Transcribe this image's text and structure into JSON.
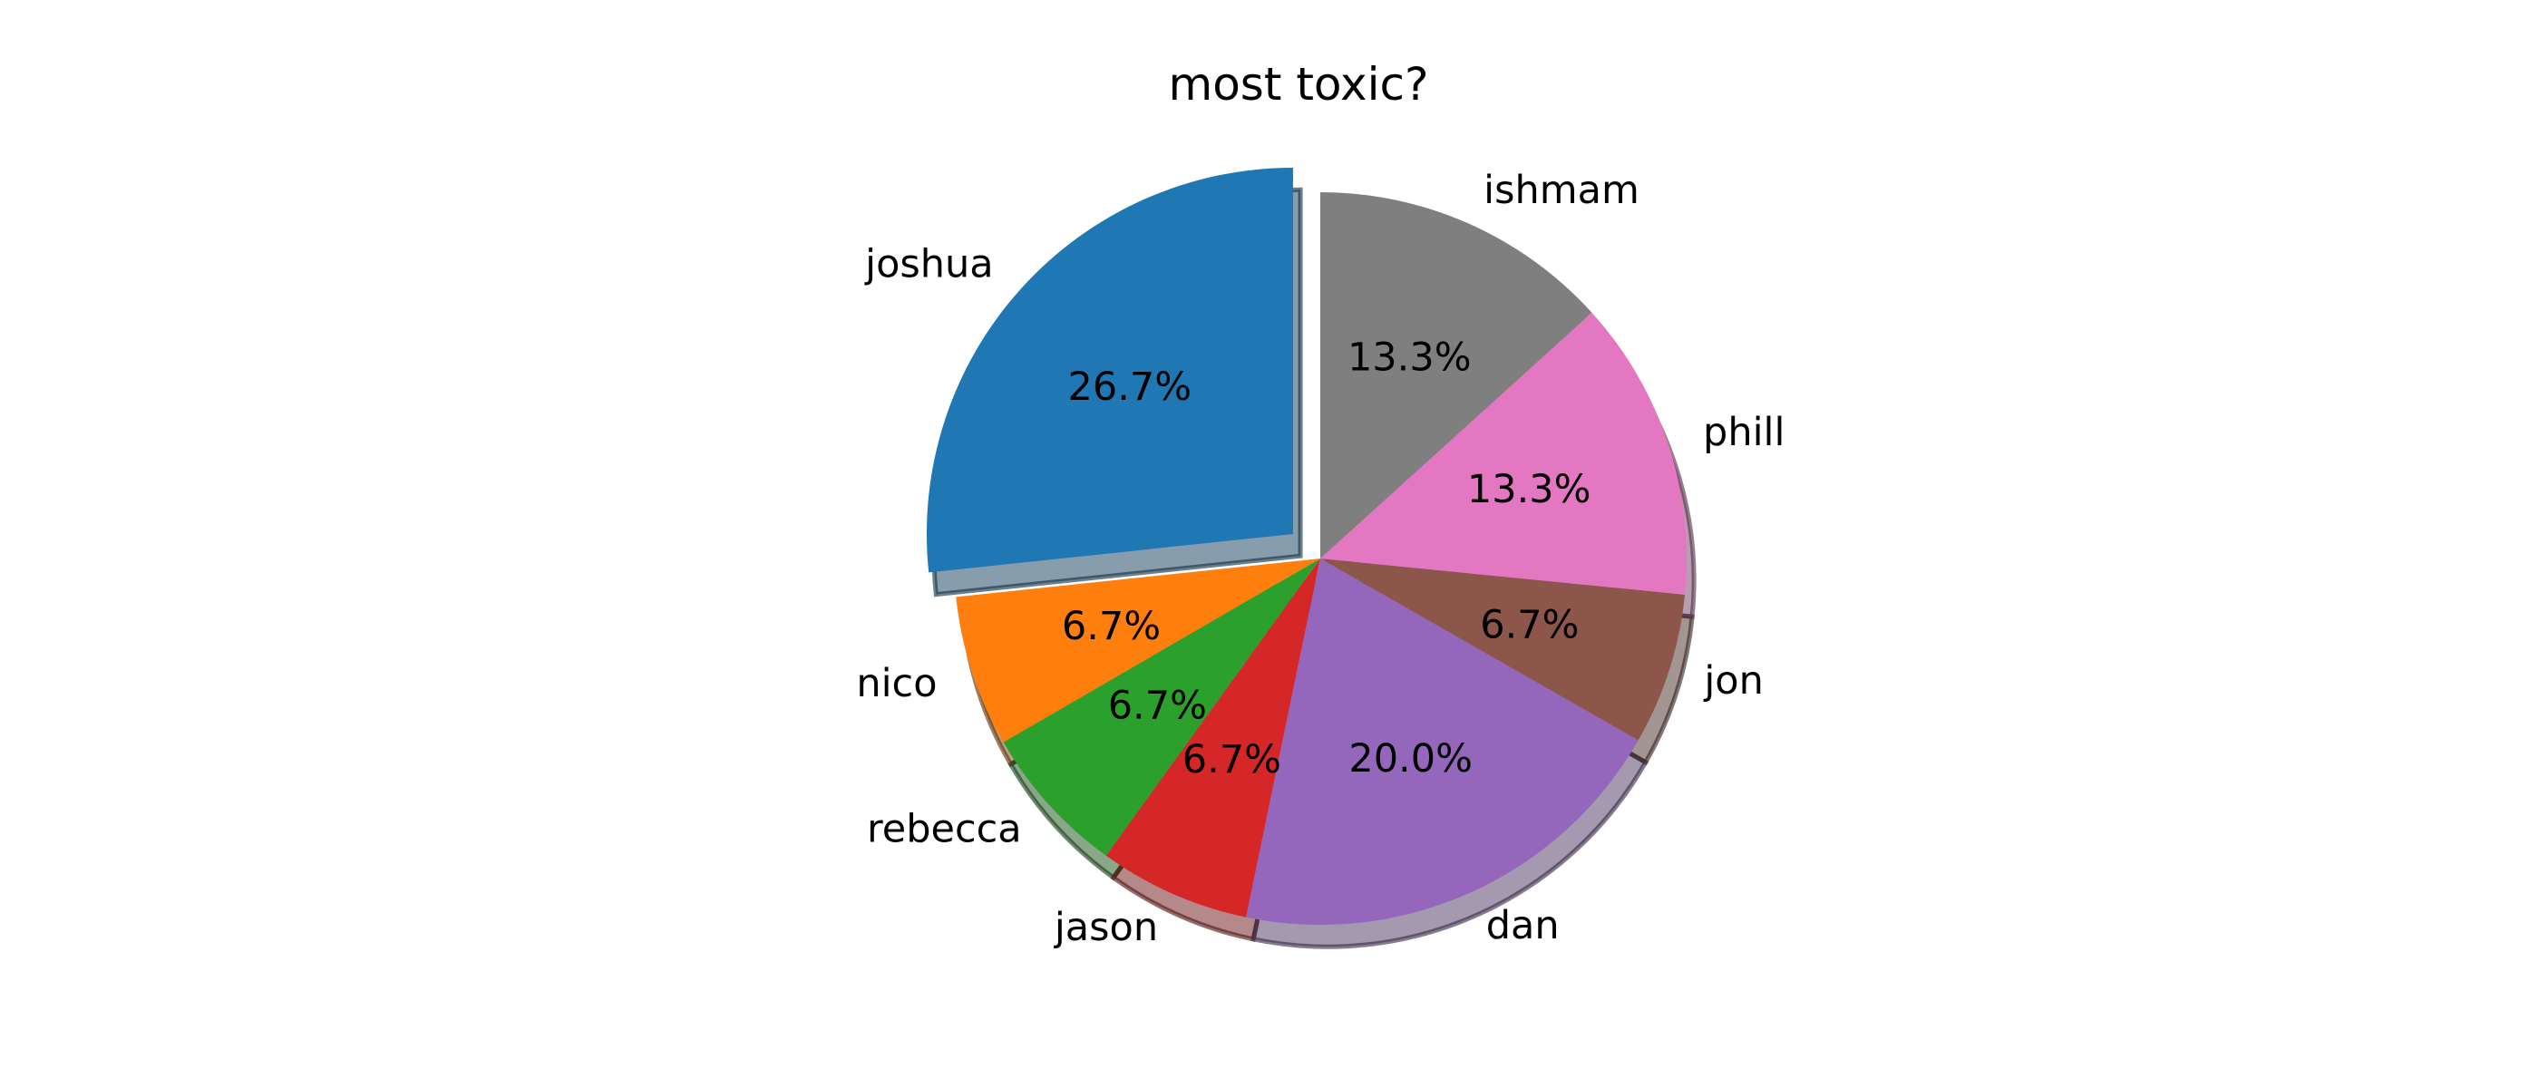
{
  "chart_data": {
    "type": "pie",
    "title": "most toxic?",
    "start_angle_deg": 90,
    "counterclock": true,
    "shadow": true,
    "slices": [
      {
        "label": "joshua",
        "value": 26.7,
        "pct_label": "26.7%",
        "color": "#1f77b4",
        "exploded": true
      },
      {
        "label": "nico",
        "value": 6.7,
        "pct_label": "6.7%",
        "color": "#ff7f0e",
        "exploded": false
      },
      {
        "label": "rebecca",
        "value": 6.7,
        "pct_label": "6.7%",
        "color": "#2ca02c",
        "exploded": false
      },
      {
        "label": "jason",
        "value": 6.7,
        "pct_label": "6.7%",
        "color": "#d62728",
        "exploded": false
      },
      {
        "label": "dan",
        "value": 20.0,
        "pct_label": "20.0%",
        "color": "#9467bd",
        "exploded": false
      },
      {
        "label": "jon",
        "value": 6.7,
        "pct_label": "6.7%",
        "color": "#8c564b",
        "exploded": false
      },
      {
        "label": "phill",
        "value": 13.3,
        "pct_label": "13.3%",
        "color": "#e377c2",
        "exploded": false
      },
      {
        "label": "ishmam",
        "value": 13.3,
        "pct_label": "13.3%",
        "color": "#7f7f7f",
        "exploded": false
      }
    ]
  }
}
